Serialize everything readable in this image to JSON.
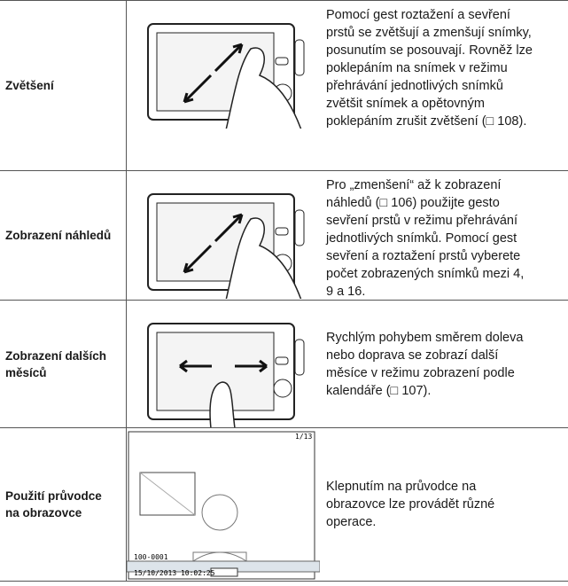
{
  "rows": [
    {
      "label": [
        "Zvětšení"
      ],
      "text": [
        "Pomocí gest roztažení a sevření",
        "prstů se zvětšují a zmenšují snímky,",
        "posunutím se posouvají. Rovněž lze",
        "poklepáním na snímek v režimu",
        "přehrávání jednotlivých snímků",
        "zvětšit snímek a opětovným",
        "poklepáním zrušit zvětšení (□ 108)."
      ]
    },
    {
      "label": [
        "Zobrazení náhledů"
      ],
      "text": [
        "Pro „zmenšení“ až k zobrazení",
        "náhledů (□ 106) použijte gesto",
        "sevření prstů v režimu přehrávání",
        "jednotlivých snímků. Pomocí gest",
        "sevření a roztažení prstů vyberete",
        "počet zobrazených snímků mezi 4,",
        "9 a 16."
      ]
    },
    {
      "label": [
        "Zobrazení dalších",
        "měsíců"
      ],
      "text": [
        "Rychlým pohybem směrem doleva",
        "nebo doprava se zobrazí další",
        "měsíce v režimu zobrazení podle",
        "kalendáře (□ 107)."
      ]
    },
    {
      "label": [
        "Použití průvodce",
        "na obrazovce"
      ],
      "text": [
        "Klepnutím na průvodce na",
        "obrazovce lze provádět různé",
        "operace."
      ],
      "screen": {
        "counter": "1/13",
        "folder": "100-0001",
        "datetime": "15/10/2013 10:02:25"
      }
    }
  ]
}
